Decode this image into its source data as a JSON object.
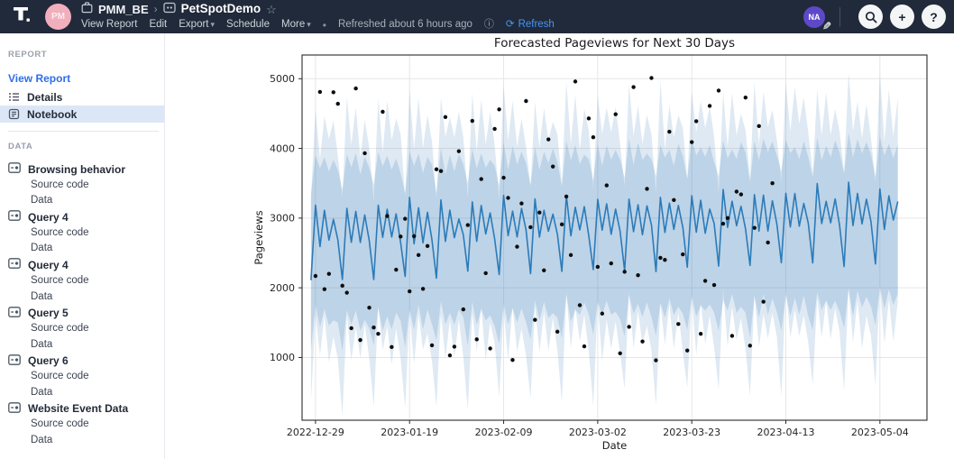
{
  "topbar": {
    "workspace_avatar": "PM",
    "breadcrumb": {
      "project": "PMM_BE",
      "separator": "›",
      "app": "PetSpotDemo"
    },
    "menu": [
      "View Report",
      "Edit",
      "Export",
      "Schedule",
      "More"
    ],
    "separator_dot": "•",
    "refreshed": "Refreshed about 6 hours ago",
    "refresh_label": "Refresh",
    "user_avatar": "NA"
  },
  "icons": {
    "caret_down": "▾",
    "star": "☆",
    "info": "ⓘ",
    "refresh": "⟳",
    "plus": "+",
    "question": "?",
    "pencil": "✎"
  },
  "sidebar": {
    "report_header": "REPORT",
    "view_report": "View Report",
    "report_items": [
      {
        "label": "Details",
        "icon": "list-icon"
      },
      {
        "label": "Notebook",
        "icon": "notebook-icon",
        "selected": true
      }
    ],
    "data_header": "DATA",
    "data_items": [
      {
        "label": "Browsing behavior",
        "children": [
          "Source code",
          "Data"
        ]
      },
      {
        "label": "Query 4",
        "children": [
          "Source code",
          "Data"
        ]
      },
      {
        "label": "Query 4",
        "children": [
          "Source code",
          "Data"
        ]
      },
      {
        "label": "Query 5",
        "children": [
          "Source code",
          "Data"
        ]
      },
      {
        "label": "Query 6",
        "children": [
          "Source code",
          "Data"
        ]
      },
      {
        "label": "Website Event Data",
        "children": [
          "Source code",
          "Data"
        ]
      }
    ]
  },
  "chart_data": {
    "type": "line",
    "title": "Forecasted Pageviews for Next 30 Days",
    "xlabel": "Date",
    "ylabel": "Pageviews",
    "x_start_date": "2022-12-26",
    "x_tick_days": [
      3,
      24,
      45,
      66,
      87,
      108,
      129
    ],
    "x_tick_labels": [
      "2022-12-29",
      "2023-01-19",
      "2023-02-09",
      "2023-03-02",
      "2023-03-23",
      "2023-04-13",
      "2023-05-04"
    ],
    "xlim_days": [
      0,
      139.5
    ],
    "y_ticks": [
      1000,
      2000,
      3000,
      4000,
      5000
    ],
    "ylim": [
      100,
      5340
    ],
    "grid": true,
    "legend": "none",
    "colors": {
      "line": "#2b7bb9",
      "band": "#3a7cba",
      "dots": "#0d0d0d",
      "grid": "#e6e6e6",
      "spine": "#2a2a2a"
    },
    "forecast": {
      "start_day": 2,
      "end_day": 133,
      "trend_start": 2760,
      "trend_end": 3040,
      "weekly_offsets": [
        430,
        -140,
        300,
        -120,
        210,
        -90,
        -660
      ],
      "inner_band": {
        "upper": 950,
        "lower": 1280,
        "weekly_scale": 0.5
      },
      "outer_band": {
        "upper": 1380,
        "lower": 1500,
        "weekly_scale": 1.3
      }
    },
    "actuals": [
      [
        3,
        2170
      ],
      [
        4,
        4810
      ],
      [
        5,
        1980
      ],
      [
        6,
        2200
      ],
      [
        7,
        4805
      ],
      [
        8,
        4640
      ],
      [
        9,
        2030
      ],
      [
        10,
        1930
      ],
      [
        11,
        1420
      ],
      [
        12,
        4860
      ],
      [
        13,
        1250
      ],
      [
        14,
        3930
      ],
      [
        15,
        1715
      ],
      [
        16,
        1430
      ],
      [
        17,
        1340
      ],
      [
        18,
        4525
      ],
      [
        19,
        3030
      ],
      [
        20,
        1150
      ],
      [
        21,
        2260
      ],
      [
        22,
        2735
      ],
      [
        23,
        2990
      ],
      [
        24,
        1950
      ],
      [
        25,
        2740
      ],
      [
        26,
        2470
      ],
      [
        27,
        1985
      ],
      [
        28,
        2600
      ],
      [
        29,
        1175
      ],
      [
        30,
        3700
      ],
      [
        31,
        3675
      ],
      [
        32,
        4450
      ],
      [
        33,
        1030
      ],
      [
        34,
        1155
      ],
      [
        35,
        3960
      ],
      [
        36,
        1690
      ],
      [
        37,
        2900
      ],
      [
        38,
        4395
      ],
      [
        39,
        1260
      ],
      [
        40,
        3560
      ],
      [
        41,
        2210
      ],
      [
        42,
        1130
      ],
      [
        43,
        4280
      ],
      [
        44,
        4560
      ],
      [
        45,
        3580
      ],
      [
        46,
        3290
      ],
      [
        47,
        965
      ],
      [
        48,
        2590
      ],
      [
        49,
        3210
      ],
      [
        50,
        4680
      ],
      [
        51,
        2870
      ],
      [
        52,
        1540
      ],
      [
        53,
        3080
      ],
      [
        54,
        2250
      ],
      [
        55,
        4130
      ],
      [
        56,
        3740
      ],
      [
        57,
        1370
      ],
      [
        58,
        2910
      ],
      [
        59,
        3310
      ],
      [
        60,
        2470
      ],
      [
        61,
        4960
      ],
      [
        62,
        1750
      ],
      [
        63,
        1160
      ],
      [
        64,
        4430
      ],
      [
        65,
        4160
      ],
      [
        66,
        2300
      ],
      [
        67,
        1630
      ],
      [
        68,
        3470
      ],
      [
        69,
        2350
      ],
      [
        70,
        4490
      ],
      [
        71,
        1060
      ],
      [
        72,
        2230
      ],
      [
        73,
        1440
      ],
      [
        74,
        4880
      ],
      [
        75,
        2180
      ],
      [
        76,
        1230
      ],
      [
        77,
        3420
      ],
      [
        78,
        5010
      ],
      [
        79,
        960
      ],
      [
        80,
        2430
      ],
      [
        81,
        2400
      ],
      [
        82,
        4240
      ],
      [
        83,
        3260
      ],
      [
        84,
        1480
      ],
      [
        85,
        2480
      ],
      [
        86,
        1100
      ],
      [
        87,
        4090
      ],
      [
        88,
        4390
      ],
      [
        89,
        1340
      ],
      [
        90,
        2100
      ],
      [
        91,
        4610
      ],
      [
        92,
        2040
      ],
      [
        93,
        4830
      ],
      [
        94,
        2920
      ],
      [
        95,
        3000
      ],
      [
        96,
        1310
      ],
      [
        97,
        3380
      ],
      [
        98,
        3340
      ],
      [
        99,
        4730
      ],
      [
        100,
        1170
      ],
      [
        101,
        2860
      ],
      [
        102,
        4320
      ],
      [
        103,
        1800
      ],
      [
        104,
        2650
      ],
      [
        105,
        3500
      ]
    ]
  }
}
